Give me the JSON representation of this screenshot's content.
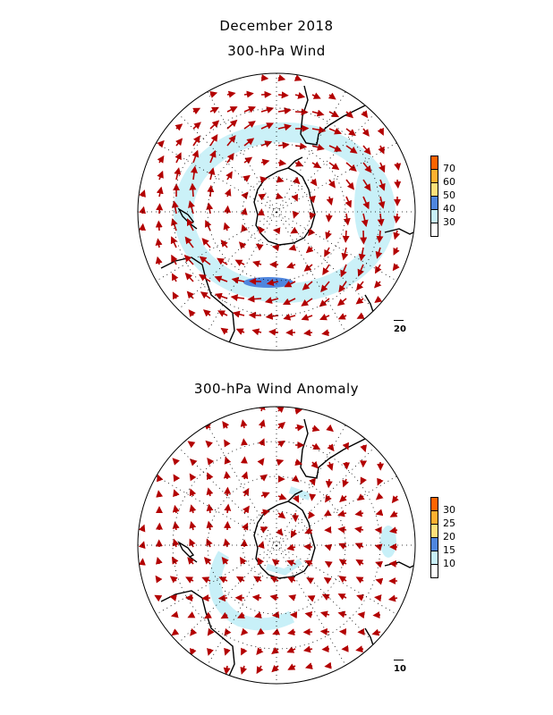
{
  "titles": {
    "main": "December 2018",
    "top_panel": "300-hPa Wind",
    "bottom_panel": "300-hPa Wind Anomaly"
  },
  "colors": {
    "vector": "#b30000",
    "coast": "#000000",
    "grid": "#000000",
    "shade_levels": [
      "#ffffff",
      "#c8f0f8",
      "#5f8fe0",
      "#ffe07a",
      "#ffb030",
      "#ff6a00"
    ]
  },
  "top_panel": {
    "colorbar": {
      "labels": [
        "30",
        "40",
        "50",
        "60",
        "70"
      ],
      "colors": [
        "#ffffff",
        "#c8f0f8",
        "#4f86de",
        "#ffe07a",
        "#ffb030",
        "#ff6400"
      ]
    },
    "reference_vector": "20"
  },
  "bottom_panel": {
    "colorbar": {
      "labels": [
        "10",
        "15",
        "20",
        "25",
        "30"
      ],
      "colors": [
        "#ffffff",
        "#c8f0f8",
        "#4f86de",
        "#ffe07a",
        "#ffb030",
        "#ff6400"
      ]
    },
    "reference_vector": "10"
  }
}
